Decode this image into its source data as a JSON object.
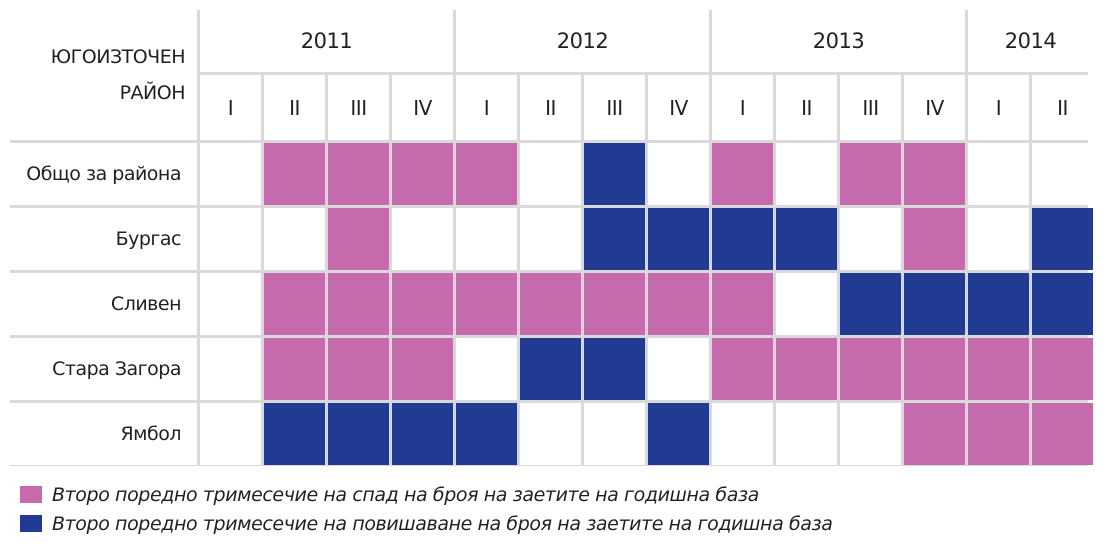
{
  "chart_data": {
    "type": "table",
    "corner_label": [
      "ЮГОИЗТОЧЕН",
      "РАЙОН"
    ],
    "years": [
      {
        "label": "2011",
        "span": 4
      },
      {
        "label": "2012",
        "span": 4
      },
      {
        "label": "2013",
        "span": 4
      },
      {
        "label": "2014",
        "span": 2
      }
    ],
    "quarters": [
      "I",
      "II",
      "III",
      "IV",
      "I",
      "II",
      "III",
      "IV",
      "I",
      "II",
      "III",
      "IV",
      "I",
      "II"
    ],
    "rows": [
      {
        "name": "Общо за района",
        "values": [
          "",
          "down",
          "down",
          "down",
          "down",
          "",
          "up",
          "",
          "down",
          "",
          "down",
          "down",
          "",
          ""
        ]
      },
      {
        "name": "Бургас",
        "values": [
          "",
          "",
          "down",
          "",
          "",
          "",
          "up",
          "up",
          "up",
          "up",
          "",
          "down",
          "",
          "up"
        ]
      },
      {
        "name": "Сливен",
        "values": [
          "",
          "down",
          "down",
          "down",
          "down",
          "down",
          "down",
          "down",
          "down",
          "",
          "up",
          "up",
          "up",
          "up"
        ]
      },
      {
        "name": "Стара Загора",
        "values": [
          "",
          "down",
          "down",
          "down",
          "",
          "up",
          "up",
          "",
          "down",
          "down",
          "down",
          "down",
          "down",
          "down"
        ]
      },
      {
        "name": "Ямбол",
        "values": [
          "",
          "up",
          "up",
          "up",
          "up",
          "",
          "",
          "up",
          "",
          "",
          "",
          "down",
          "down",
          "down"
        ]
      }
    ],
    "legend": [
      {
        "key": "down",
        "label": "Второ поредно тримесечие на спад на броя на заетите на годишна база"
      },
      {
        "key": "up",
        "label": "Второ поредно тримесечие на повишаване на броя на заетите на годишна база"
      }
    ]
  },
  "colors": {
    "down": "#c56aab",
    "up": "#213b93",
    "grid": "#d9d9db"
  }
}
